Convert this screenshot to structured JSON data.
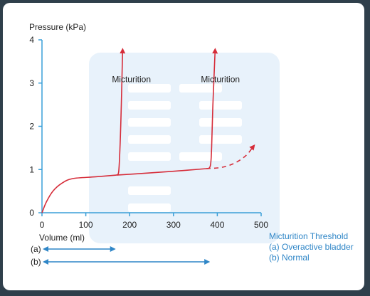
{
  "chart_data": {
    "type": "line",
    "ylabel": "Pressure (kPa)",
    "xlabel": "Volume (ml)",
    "xlim": [
      0,
      500
    ],
    "ylim": [
      0,
      4
    ],
    "xticks": [
      0,
      100,
      200,
      300,
      400,
      500
    ],
    "yticks": [
      0,
      1,
      2,
      3,
      4
    ],
    "series": [
      {
        "style": "solid",
        "points": [
          [
            0,
            0
          ],
          [
            10,
            0.25
          ],
          [
            25,
            0.5
          ],
          [
            45,
            0.68
          ],
          [
            70,
            0.79
          ],
          [
            120,
            0.83
          ],
          [
            170,
            0.87
          ]
        ]
      },
      {
        "style": "solid-arrow",
        "points": [
          [
            170,
            0.87
          ],
          [
            175,
            0.95
          ],
          [
            178,
            1.5
          ],
          [
            181,
            2.5
          ],
          [
            184,
            3.75
          ]
        ]
      },
      {
        "style": "solid",
        "points": [
          [
            170,
            0.87
          ],
          [
            230,
            0.91
          ],
          [
            300,
            0.96
          ],
          [
            375,
            1.02
          ]
        ]
      },
      {
        "style": "solid-arrow",
        "points": [
          [
            375,
            1.02
          ],
          [
            384,
            1.08
          ],
          [
            387,
            1.5
          ],
          [
            390,
            2.5
          ],
          [
            395,
            3.75
          ]
        ]
      },
      {
        "style": "dashed-arrow",
        "points": [
          [
            375,
            1.02
          ],
          [
            410,
            1.05
          ],
          [
            440,
            1.15
          ],
          [
            465,
            1.32
          ],
          [
            482,
            1.53
          ]
        ]
      }
    ],
    "annotations": [
      {
        "text": "Micturition",
        "x": 204,
        "y": 3.02
      },
      {
        "text": "Micturition",
        "x": 407,
        "y": 3.02
      }
    ],
    "ranges": [
      {
        "label": "(a)",
        "from": 0,
        "to": 170
      },
      {
        "label": "(b)",
        "from": 0,
        "to": 385
      }
    ],
    "legend": {
      "title": "Micturition Threshold",
      "items": [
        "(a) Overactive bladder",
        "(b) Normal"
      ]
    },
    "grid": false,
    "colors": {
      "line": "#d62d3a",
      "axis": "#3a9fd8",
      "range": "#2f86c7",
      "legend": "#2f86c7",
      "watermark": "#e8f2fb"
    }
  }
}
